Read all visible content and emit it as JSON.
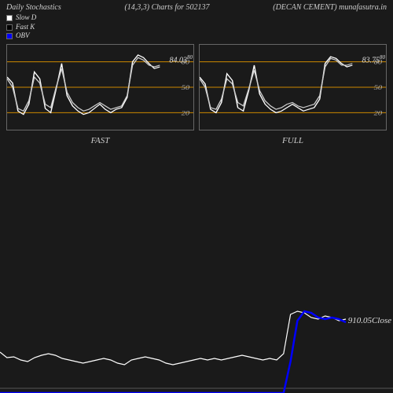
{
  "header": {
    "title": "Daily Stochastics",
    "params": "(14,3,3) Charts for 502137",
    "source": "(DECAN CEMENT) munafasutra.in"
  },
  "legend": {
    "slow_d": {
      "label": "Slow D",
      "color": "#ffffff"
    },
    "fast_k": {
      "label": "Fast K",
      "color": "#000000",
      "border": "#666"
    },
    "obv": {
      "label": "OBV",
      "color": "#0000ff"
    }
  },
  "stoch_panel": {
    "ylim": [
      0,
      100
    ],
    "grid_levels": [
      20,
      50,
      80
    ],
    "grid_color": "#cc8800",
    "line_colors": [
      "#ffffff",
      "#cccccc"
    ],
    "background": "#1a1a1a",
    "border": "#666666"
  },
  "fast_panel": {
    "title": "FAST",
    "value": "84.03",
    "super": "80",
    "series_a": [
      62,
      55,
      22,
      18,
      30,
      68,
      60,
      25,
      20,
      48,
      78,
      40,
      28,
      22,
      18,
      20,
      25,
      30,
      24,
      20,
      24,
      26,
      38,
      80,
      88,
      85,
      78,
      72,
      74
    ],
    "series_b": [
      60,
      50,
      25,
      22,
      34,
      62,
      55,
      30,
      26,
      50,
      72,
      44,
      32,
      26,
      22,
      24,
      28,
      32,
      28,
      24,
      26,
      28,
      40,
      76,
      85,
      82,
      76,
      74,
      76
    ]
  },
  "full_panel": {
    "title": "FULL",
    "value": "83.75",
    "super": "80",
    "series_a": [
      62,
      54,
      24,
      20,
      32,
      66,
      58,
      26,
      22,
      46,
      76,
      42,
      30,
      24,
      20,
      22,
      26,
      30,
      26,
      22,
      24,
      26,
      36,
      78,
      86,
      84,
      78,
      74,
      76
    ],
    "series_b": [
      60,
      50,
      26,
      24,
      36,
      60,
      54,
      32,
      28,
      48,
      70,
      46,
      34,
      28,
      24,
      26,
      30,
      32,
      28,
      26,
      28,
      30,
      40,
      74,
      84,
      82,
      76,
      76,
      78
    ]
  },
  "main_chart": {
    "close_value": "910.05",
    "close_label": "Close",
    "price_line_color": "#ffffff",
    "obv_line_color": "#0000ff",
    "background": "#1a1a1a",
    "price_series": [
      248,
      255,
      254,
      258,
      260,
      255,
      252,
      250,
      252,
      256,
      258,
      260,
      262,
      260,
      258,
      256,
      258,
      262,
      264,
      258,
      256,
      254,
      256,
      258,
      262,
      264,
      262,
      260,
      258,
      256,
      258,
      256,
      258,
      256,
      254,
      252,
      254,
      256,
      258,
      256,
      258,
      250,
      200,
      196,
      198,
      204,
      206,
      202,
      204,
      208,
      206
    ],
    "obv_series": [
      300,
      300,
      300,
      300,
      300,
      300,
      300,
      300,
      300,
      300,
      300,
      300,
      300,
      300,
      300,
      300,
      300,
      300,
      300,
      300,
      300,
      300,
      300,
      300,
      300,
      300,
      300,
      300,
      300,
      300,
      300,
      300,
      300,
      300,
      300,
      300,
      300,
      300,
      300,
      300,
      300,
      300,
      260,
      208,
      196,
      198,
      204,
      206,
      204,
      206,
      210
    ]
  }
}
